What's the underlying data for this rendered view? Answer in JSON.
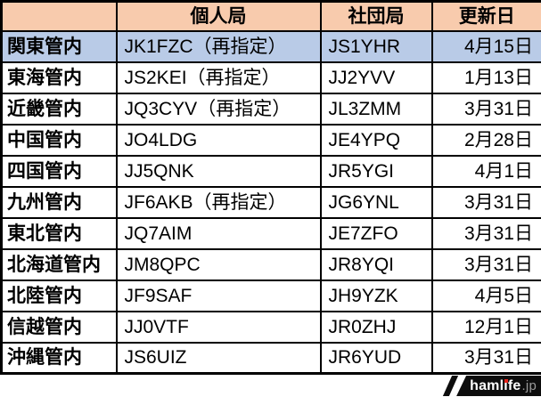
{
  "colors": {
    "header_bg": "#F8CBAD",
    "highlight_row_bg": "#B9CBE7",
    "table_border": "#000000",
    "logo_bg": "#0d0d0d",
    "logo_text": "#ffffff",
    "logo_i_dot": "#e8231a",
    "logo_suffix_text": "#9b9b9b"
  },
  "table": {
    "headers": {
      "region": "",
      "personal": "個人局",
      "club": "社団局",
      "updated": "更新日"
    },
    "rows": [
      {
        "region": "関東管内",
        "personal": "JK1FZC（再指定）",
        "club": "JS1YHR",
        "updated": "4月15日",
        "highlight": true
      },
      {
        "region": "東海管内",
        "personal": "JS2KEI（再指定）",
        "club": "JJ2YVV",
        "updated": "1月13日",
        "highlight": false
      },
      {
        "region": "近畿管内",
        "personal": "JQ3CYV（再指定）",
        "club": "JL3ZMM",
        "updated": "3月31日",
        "highlight": false
      },
      {
        "region": "中国管内",
        "personal": "JO4LDG",
        "club": "JE4YPQ",
        "updated": "2月28日",
        "highlight": false
      },
      {
        "region": "四国管内",
        "personal": "JJ5QNK",
        "club": "JR5YGI",
        "updated": "4月1日",
        "highlight": false
      },
      {
        "region": "九州管内",
        "personal": "JF6AKB（再指定）",
        "club": "JG6YNL",
        "updated": "3月31日",
        "highlight": false
      },
      {
        "region": "東北管内",
        "personal": "JQ7AIM",
        "club": "JE7ZFO",
        "updated": "3月31日",
        "highlight": false
      },
      {
        "region": "北海道管内",
        "personal": "JM8QPC",
        "club": "JR8YQI",
        "updated": "3月31日",
        "highlight": false
      },
      {
        "region": "北陸管内",
        "personal": "JF9SAF",
        "club": "JH9YZK",
        "updated": "4月5日",
        "highlight": false
      },
      {
        "region": "信越管内",
        "personal": "JJ0VTF",
        "club": "JR0ZHJ",
        "updated": "12月1日",
        "highlight": false
      },
      {
        "region": "沖縄管内",
        "personal": "JS6UIZ",
        "club": "JR6YUD",
        "updated": "3月31日",
        "highlight": false
      }
    ]
  },
  "logo": {
    "pre": "haml",
    "i": "i",
    "post": "fe",
    "suffix": ".jp"
  }
}
